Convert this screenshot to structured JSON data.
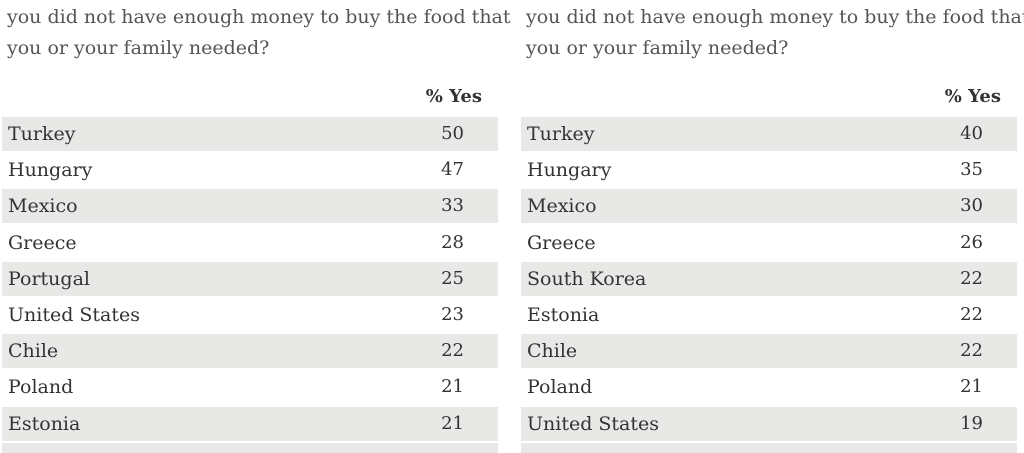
{
  "chart_data": [
    {
      "type": "table",
      "question_lines": [
        "you did not have enough money to buy the food that",
        "you or your family needed?"
      ],
      "column_header": "% Yes",
      "rows": [
        {
          "country": "Turkey",
          "value": 50
        },
        {
          "country": "Hungary",
          "value": 47
        },
        {
          "country": "Mexico",
          "value": 33
        },
        {
          "country": "Greece",
          "value": 28
        },
        {
          "country": "Portugal",
          "value": 25
        },
        {
          "country": "United States",
          "value": 23
        },
        {
          "country": "Chile",
          "value": 22
        },
        {
          "country": "Poland",
          "value": 21
        },
        {
          "country": "Estonia",
          "value": 21
        }
      ]
    },
    {
      "type": "table",
      "question_lines": [
        "you did not have enough money to buy the food that",
        "you or your family needed?"
      ],
      "column_header": "% Yes",
      "rows": [
        {
          "country": "Turkey",
          "value": 40
        },
        {
          "country": "Hungary",
          "value": 35
        },
        {
          "country": "Mexico",
          "value": 30
        },
        {
          "country": "Greece",
          "value": 26
        },
        {
          "country": "South Korea",
          "value": 22
        },
        {
          "country": "Estonia",
          "value": 22
        },
        {
          "country": "Chile",
          "value": 22
        },
        {
          "country": "Poland",
          "value": 21
        },
        {
          "country": "United States",
          "value": 19
        }
      ]
    }
  ]
}
